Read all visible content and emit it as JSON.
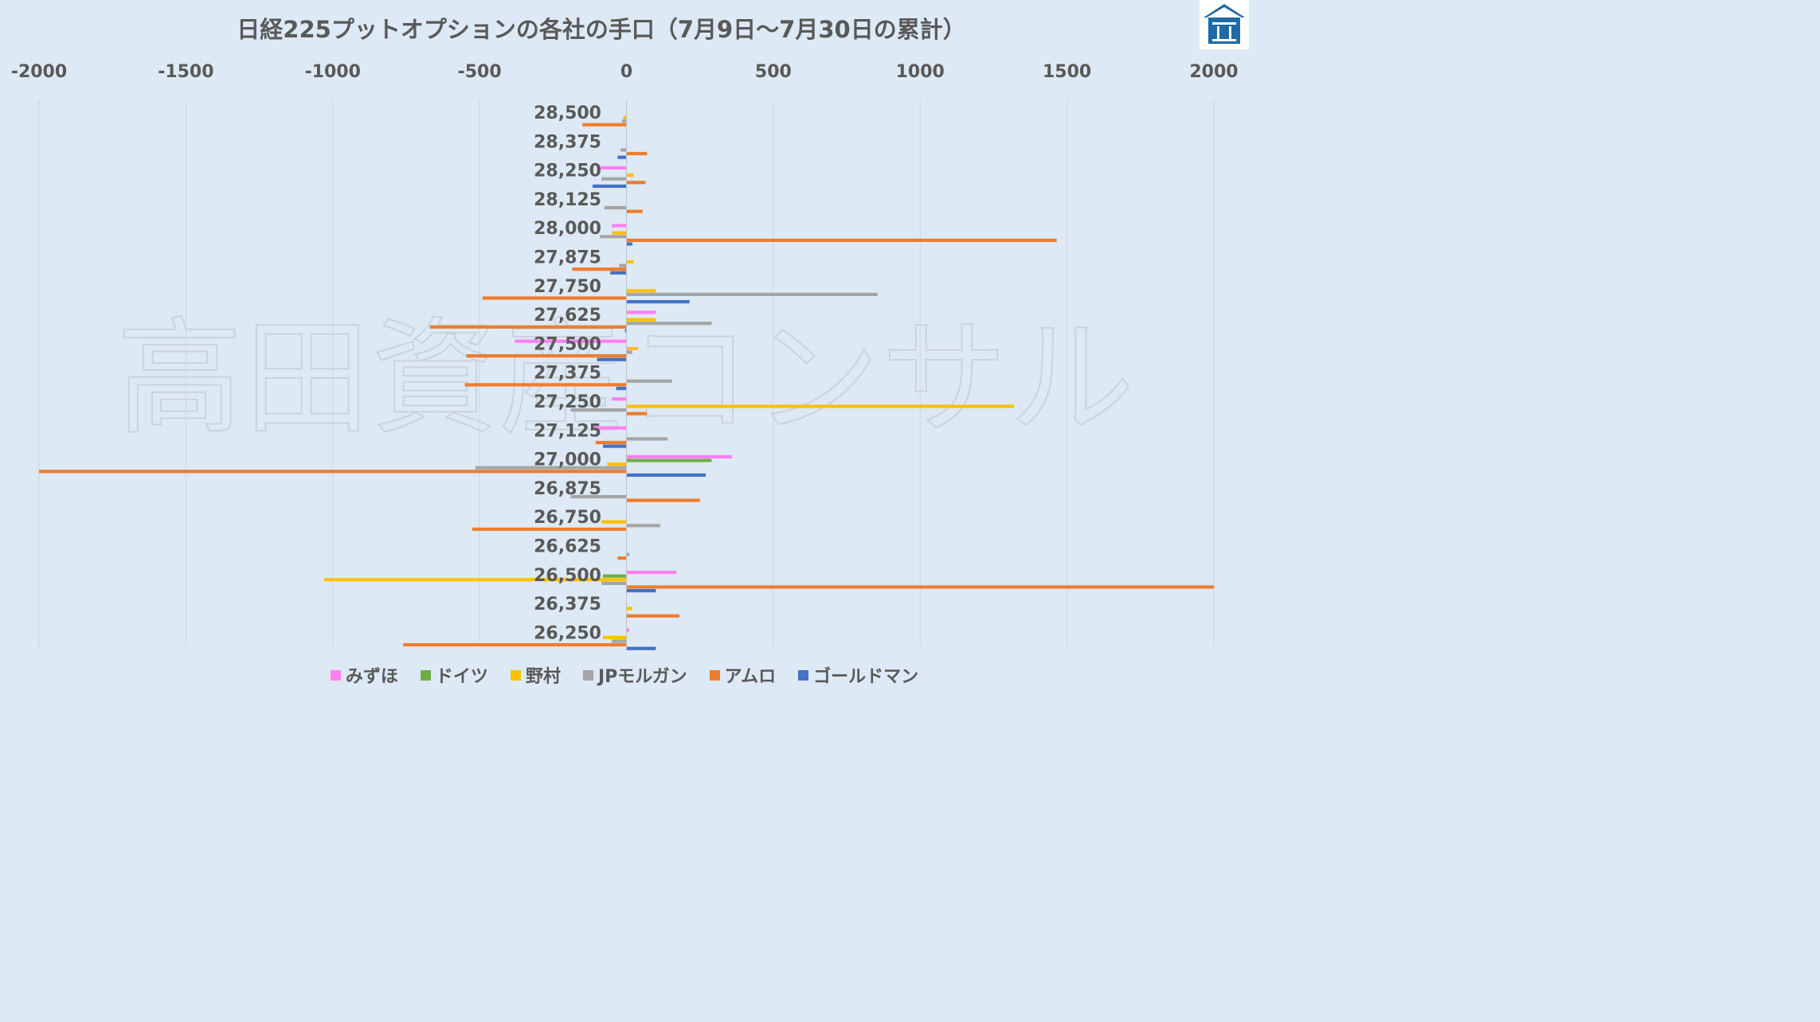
{
  "chart_data": {
    "type": "bar",
    "orientation": "horizontal",
    "title": "日経225プットオプションの各社の手口（7月9日～7月30日の累計）",
    "watermark": "高田資産コンサル",
    "xlim": [
      -2000,
      2000
    ],
    "xticks": [
      "-2000",
      "-1500",
      "-1000",
      "-500",
      "0",
      "500",
      "1000",
      "1500",
      "2000"
    ],
    "xtick_values": [
      -2000,
      -1500,
      -1000,
      -500,
      0,
      500,
      1000,
      1500,
      2000
    ],
    "grid": true,
    "legend_position": "bottom",
    "categories": [
      "28,500",
      "28,375",
      "28,250",
      "28,125",
      "28,000",
      "27,875",
      "27,750",
      "27,625",
      "27,500",
      "27,375",
      "27,250",
      "27,125",
      "27,000",
      "26,875",
      "26,750",
      "26,625",
      "26,500",
      "26,375",
      "26,250"
    ],
    "series": [
      {
        "name": "みずほ",
        "color": "#ff80f0",
        "values": [
          0,
          0,
          -100,
          0,
          -50,
          0,
          0,
          100,
          -380,
          0,
          -50,
          -120,
          360,
          0,
          -2,
          0,
          170,
          0,
          10
        ]
      },
      {
        "name": "ドイツ",
        "color": "#70ad47",
        "values": [
          0,
          0,
          0,
          0,
          0,
          0,
          0,
          0,
          0,
          0,
          0,
          0,
          290,
          0,
          0,
          0,
          -80,
          0,
          0
        ]
      },
      {
        "name": "野村",
        "color": "#ffc000",
        "values": [
          -10,
          0,
          25,
          0,
          -50,
          25,
          100,
          100,
          40,
          0,
          1320,
          0,
          -65,
          0,
          -85,
          0,
          -1030,
          20,
          -80
        ]
      },
      {
        "name": "JPモルガン",
        "color": "#a5a5a5",
        "values": [
          -15,
          -20,
          -85,
          -75,
          -90,
          -25,
          855,
          290,
          20,
          155,
          -190,
          140,
          -515,
          -190,
          115,
          10,
          -85,
          0,
          -50
        ]
      },
      {
        "name": "アムロ",
        "color": "#ed7d31",
        "values": [
          -150,
          70,
          65,
          55,
          1465,
          -185,
          -490,
          -670,
          -545,
          -550,
          70,
          -105,
          -2000,
          250,
          -525,
          -30,
          2000,
          180,
          -760
        ]
      },
      {
        "name": "ゴールドマン",
        "color": "#4472c4",
        "values": [
          0,
          -30,
          -115,
          0,
          20,
          -55,
          215,
          -5,
          -100,
          -35,
          0,
          -80,
          270,
          0,
          0,
          0,
          100,
          0,
          100
        ]
      }
    ]
  }
}
